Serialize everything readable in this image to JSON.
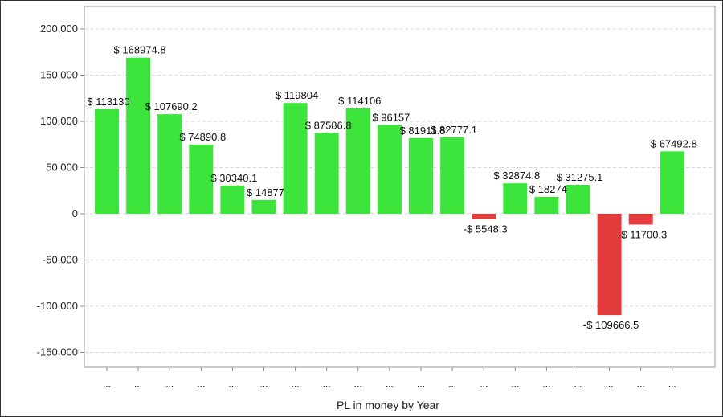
{
  "chart_data": {
    "type": "bar",
    "xlabel": "PL in money by Year",
    "ylabel": "",
    "ylim": [
      -165000,
      230000
    ],
    "yticks": [
      200000,
      150000,
      100000,
      50000,
      0,
      -50000,
      -100000,
      -150000
    ],
    "ytick_labels": [
      "200,000",
      "150,000",
      "100,000",
      "50,000",
      "0",
      "-50,000",
      "-100,000",
      "-150,000"
    ],
    "grid": true,
    "categories": [
      "...",
      "...",
      "...",
      "...",
      "...",
      "...",
      "...",
      "...",
      "...",
      "...",
      "...",
      "...",
      "...",
      "...",
      "...",
      "...",
      "...",
      "...",
      "..."
    ],
    "values": [
      113130,
      168974.8,
      107690.2,
      74890.8,
      30340.1,
      14877,
      119804,
      87586.8,
      114106,
      96157,
      81911.8,
      82777.1,
      -5548.3,
      32874.8,
      18274,
      31275.1,
      -109666.5,
      -11700.3,
      67492.8
    ],
    "data_labels": [
      "$ 113130",
      "$ 168974.8",
      "$ 107690.2",
      "$ 74890.8",
      "$ 30340.1",
      "$ 14877",
      "$ 119804",
      "$ 87586.8",
      "$ 114106",
      "$ 96157",
      "$ 81911.8",
      "$ 82777.1",
      "-$ 5548.3",
      "$ 32874.8",
      "$ 18274",
      "$ 31275.1",
      "-$ 109666.5",
      "-$ 11700.3",
      "$ 67492.8"
    ],
    "colors": {
      "positive": "#3ce43c",
      "negative": "#e43c3c",
      "grid": "#d9d9d9",
      "axis": "#888888"
    }
  }
}
